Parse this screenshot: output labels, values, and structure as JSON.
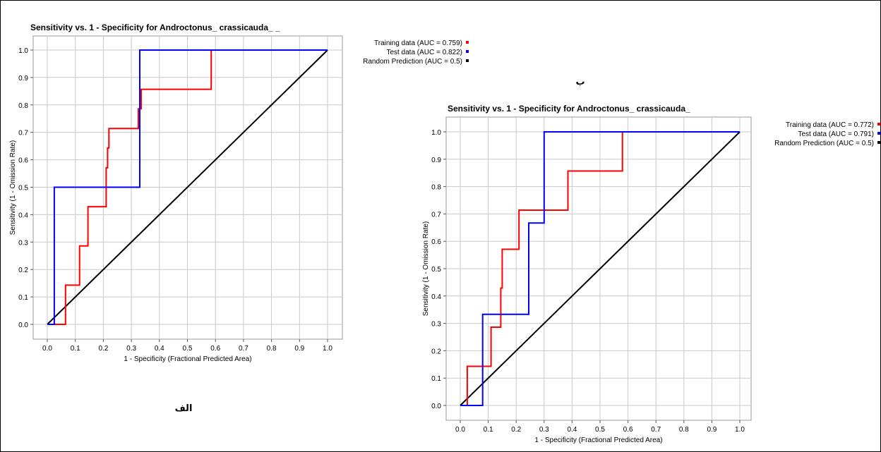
{
  "chart_data": [
    {
      "type": "line",
      "panel_label": "الف",
      "title": "Sensitivity vs. 1 - Specificity for Androctonus_ crassicauda_ _",
      "xlabel": "1 - Specificity  (Fractional Predicted Area)",
      "ylabel": "Sensitivity  (1 - Omission Rate)",
      "xlim": [
        0,
        1
      ],
      "ylim": [
        0,
        1
      ],
      "x_ticks": [
        "0.0",
        "0.1",
        "0.2",
        "0.3",
        "0.4",
        "0.5",
        "0.6",
        "0.7",
        "0.8",
        "0.9",
        "1.0"
      ],
      "y_ticks": [
        "0.0",
        "0.1",
        "0.2",
        "0.3",
        "0.4",
        "0.5",
        "0.6",
        "0.7",
        "0.8",
        "0.9",
        "1.0"
      ],
      "grid": true,
      "legend_position": "right",
      "series": [
        {
          "name": "Training data (AUC = 0.759)",
          "color": "#ff0000",
          "x": [
            0,
            0.065,
            0.065,
            0.115,
            0.115,
            0.145,
            0.145,
            0.21,
            0.21,
            0.215,
            0.215,
            0.22,
            0.22,
            0.325,
            0.325,
            0.335,
            0.335,
            0.585,
            0.585,
            1.0
          ],
          "y": [
            0,
            0,
            0.143,
            0.143,
            0.286,
            0.286,
            0.429,
            0.429,
            0.571,
            0.571,
            0.643,
            0.643,
            0.714,
            0.714,
            0.786,
            0.786,
            0.857,
            0.857,
            1.0,
            1.0
          ]
        },
        {
          "name": "Test data (AUC = 0.822)",
          "color": "#0000ff",
          "x": [
            0,
            0.025,
            0.025,
            0.33,
            0.33,
            1.0
          ],
          "y": [
            0,
            0,
            0.5,
            0.5,
            1.0,
            1.0
          ]
        },
        {
          "name": "Random Prediction (AUC = 0.5)",
          "color": "#000000",
          "x": [
            0,
            1
          ],
          "y": [
            0,
            1
          ]
        }
      ]
    },
    {
      "type": "line",
      "panel_label": "ب",
      "title": "Sensitivity vs. 1 - Specificity for Androctonus_ crassicauda_",
      "xlabel": "1 - Specificity  (Fractional Predicted Area)",
      "ylabel": "Sensitivity  (1 - Omission Rate)",
      "xlim": [
        0,
        1
      ],
      "ylim": [
        0,
        1
      ],
      "x_ticks": [
        "0.0",
        "0.1",
        "0.2",
        "0.3",
        "0.4",
        "0.5",
        "0.6",
        "0.7",
        "0.8",
        "0.9",
        "1.0"
      ],
      "y_ticks": [
        "0.0",
        "0.1",
        "0.2",
        "0.3",
        "0.4",
        "0.5",
        "0.6",
        "0.7",
        "0.8",
        "0.9",
        "1.0"
      ],
      "grid": true,
      "legend_position": "right",
      "series": [
        {
          "name": "Training data (AUC = 0.772)",
          "color": "#ff0000",
          "x": [
            0,
            0.025,
            0.025,
            0.11,
            0.11,
            0.145,
            0.145,
            0.15,
            0.15,
            0.21,
            0.21,
            0.385,
            0.385,
            0.58,
            0.58,
            1.0
          ],
          "y": [
            0,
            0,
            0.143,
            0.143,
            0.286,
            0.286,
            0.429,
            0.429,
            0.571,
            0.571,
            0.714,
            0.714,
            0.857,
            0.857,
            1.0,
            1.0
          ]
        },
        {
          "name": "Test data (AUC = 0.791)",
          "color": "#0000ff",
          "x": [
            0,
            0.08,
            0.08,
            0.245,
            0.245,
            0.3,
            0.3,
            1.0
          ],
          "y": [
            0,
            0,
            0.333,
            0.333,
            0.667,
            0.667,
            1.0,
            1.0
          ]
        },
        {
          "name": "Random Prediction (AUC = 0.5)",
          "color": "#000000",
          "x": [
            0,
            1
          ],
          "y": [
            0,
            1
          ]
        }
      ]
    }
  ]
}
